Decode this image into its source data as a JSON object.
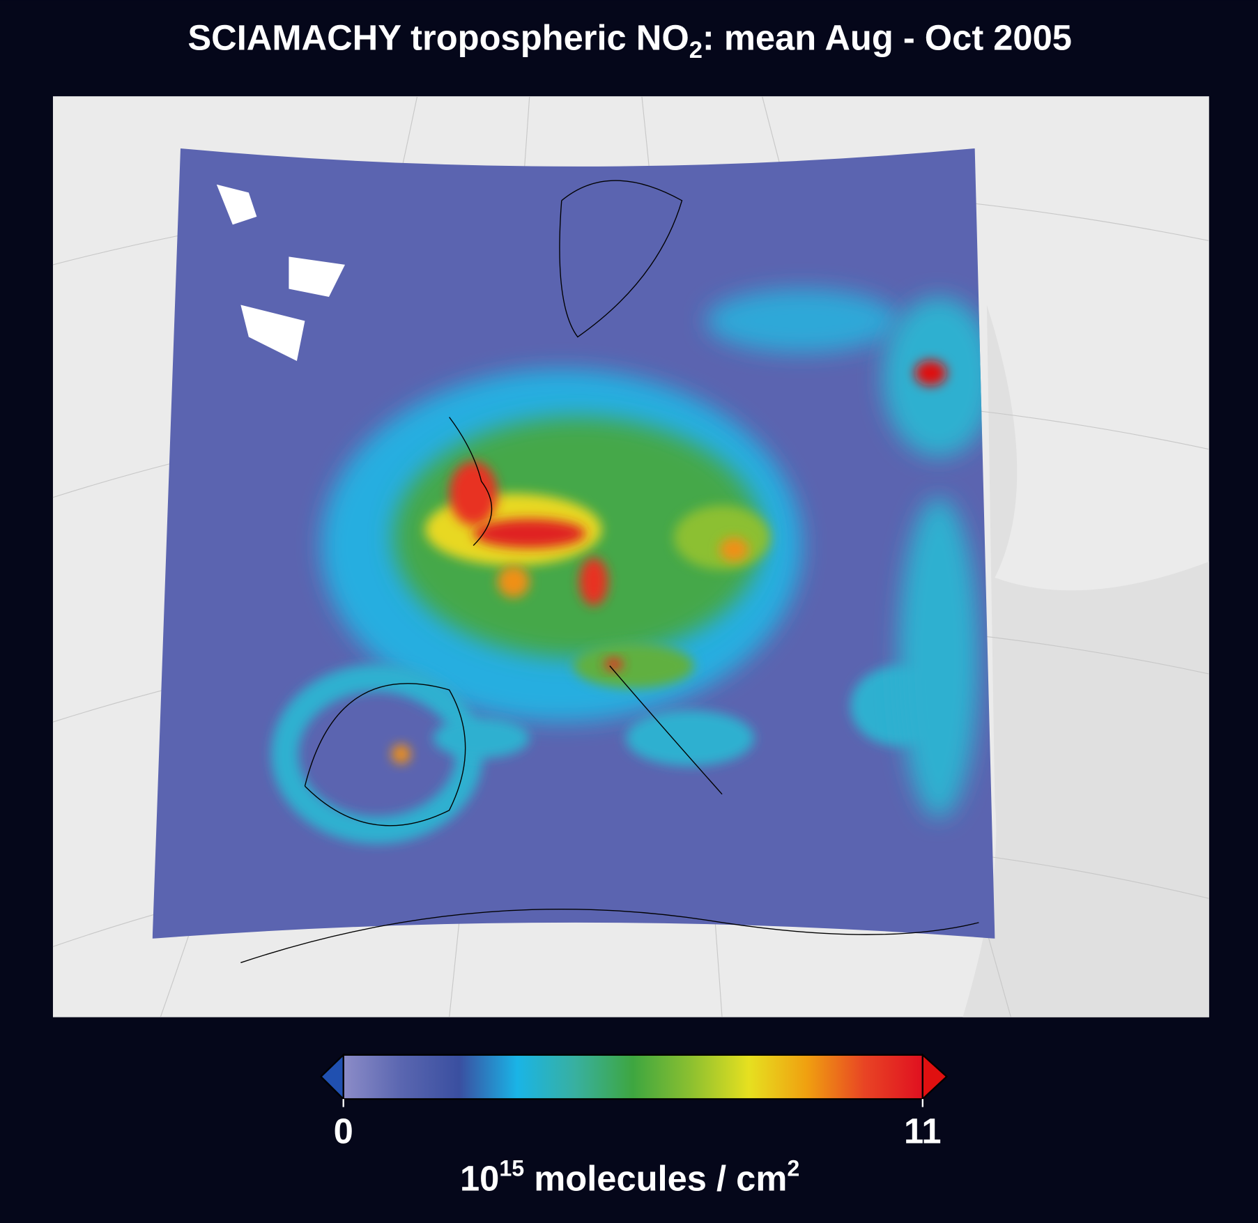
{
  "chart_data": {
    "type": "map",
    "title": {
      "main": "SCIAMACHY tropospheric NO",
      "sub": "2",
      "rest": ": mean Aug - Oct 2005"
    },
    "colorbar": {
      "lim": [
        0,
        11
      ],
      "ticks": [
        0,
        11
      ],
      "colors": [
        "#8c8cc8",
        "#5a66b0",
        "#3a4fa0",
        "#1ab4e6",
        "#38b0a0",
        "#3ea640",
        "#8cc030",
        "#e6e020",
        "#f0a010",
        "#e84424",
        "#e01020"
      ],
      "under_color": "#2050b0",
      "over_color": "#e01010"
    },
    "unit": {
      "base": "10",
      "exp": "15",
      "mid": " molecules / cm",
      "exp2": "2"
    }
  }
}
